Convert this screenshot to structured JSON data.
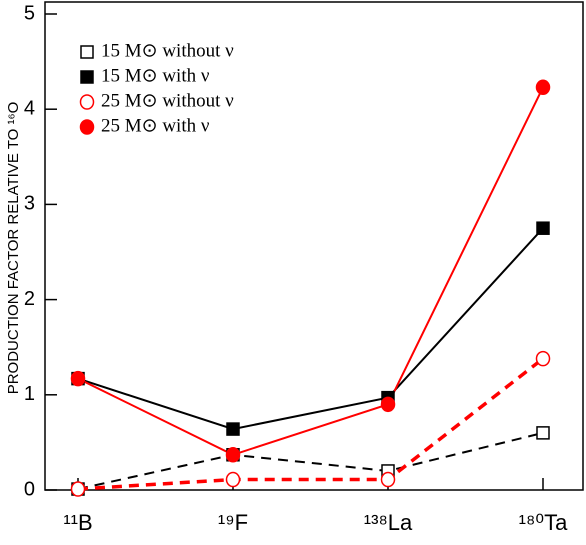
{
  "chart_data": {
    "type": "line",
    "y_label": "PRODUCTION FACTOR RELATIVE TO ¹⁶O",
    "categories": [
      "¹¹B",
      "¹⁹F",
      "¹³⁸La",
      "¹⁸⁰Ta"
    ],
    "series": [
      {
        "name": "15 M⊙ without ν",
        "color": "#000000",
        "dash": true,
        "width": 2,
        "marker": "square",
        "filled": false,
        "values": [
          0.01,
          0.37,
          0.2,
          0.6
        ]
      },
      {
        "name": "15 M⊙ with ν",
        "color": "#000000",
        "dash": false,
        "width": 2,
        "marker": "square",
        "filled": true,
        "values": [
          1.17,
          0.64,
          0.97,
          2.75
        ]
      },
      {
        "name": "25 M⊙ without ν",
        "color": "#ff0000",
        "dash": true,
        "width": 3.5,
        "marker": "circle",
        "filled": false,
        "values": [
          0.01,
          0.11,
          0.11,
          1.38
        ]
      },
      {
        "name": "25 M⊙ with ν",
        "color": "#ff0000",
        "dash": false,
        "width": 2,
        "marker": "circle",
        "filled": true,
        "values": [
          1.17,
          0.37,
          0.9,
          4.23
        ]
      }
    ],
    "ylim": [
      0,
      5
    ],
    "yticks": [
      0,
      1,
      2,
      3,
      4,
      5
    ],
    "grid": false,
    "legend": "top-left"
  }
}
